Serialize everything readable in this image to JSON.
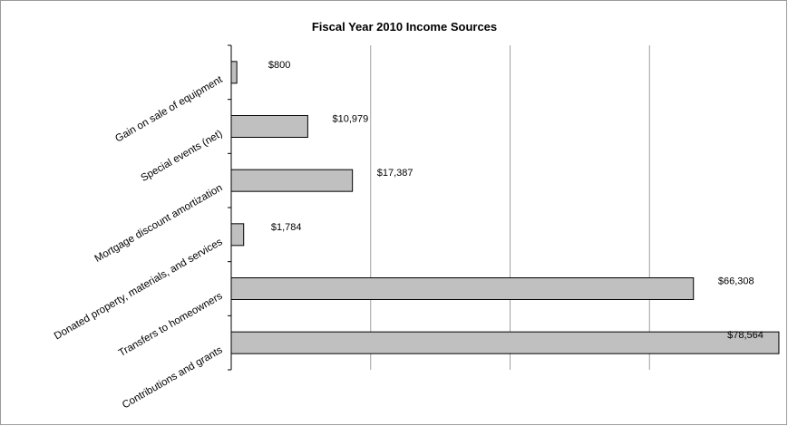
{
  "chart_data": {
    "type": "bar",
    "orientation": "horizontal",
    "title": "Fiscal Year 2010 Income Sources",
    "xlabel": "",
    "ylabel": "",
    "categories": [
      "Gain on sale of equipment",
      "Special events (net)",
      "Mortgage discount amortization",
      "Donated property, materials, and services",
      "Transfers to homeowners",
      "Contributions and grants"
    ],
    "values": [
      800,
      10979,
      17387,
      1784,
      66308,
      78564
    ],
    "value_labels": [
      "$800",
      "$10,979",
      "$17,387",
      "$1,784",
      "$66,308",
      "$78,564"
    ],
    "xlim": [
      0,
      80000
    ],
    "grid": "vertical",
    "legend": "none",
    "bar_color": "#c0c0c0",
    "bar_edge_color": "#000000",
    "grid_color": "#a0a0a0"
  }
}
